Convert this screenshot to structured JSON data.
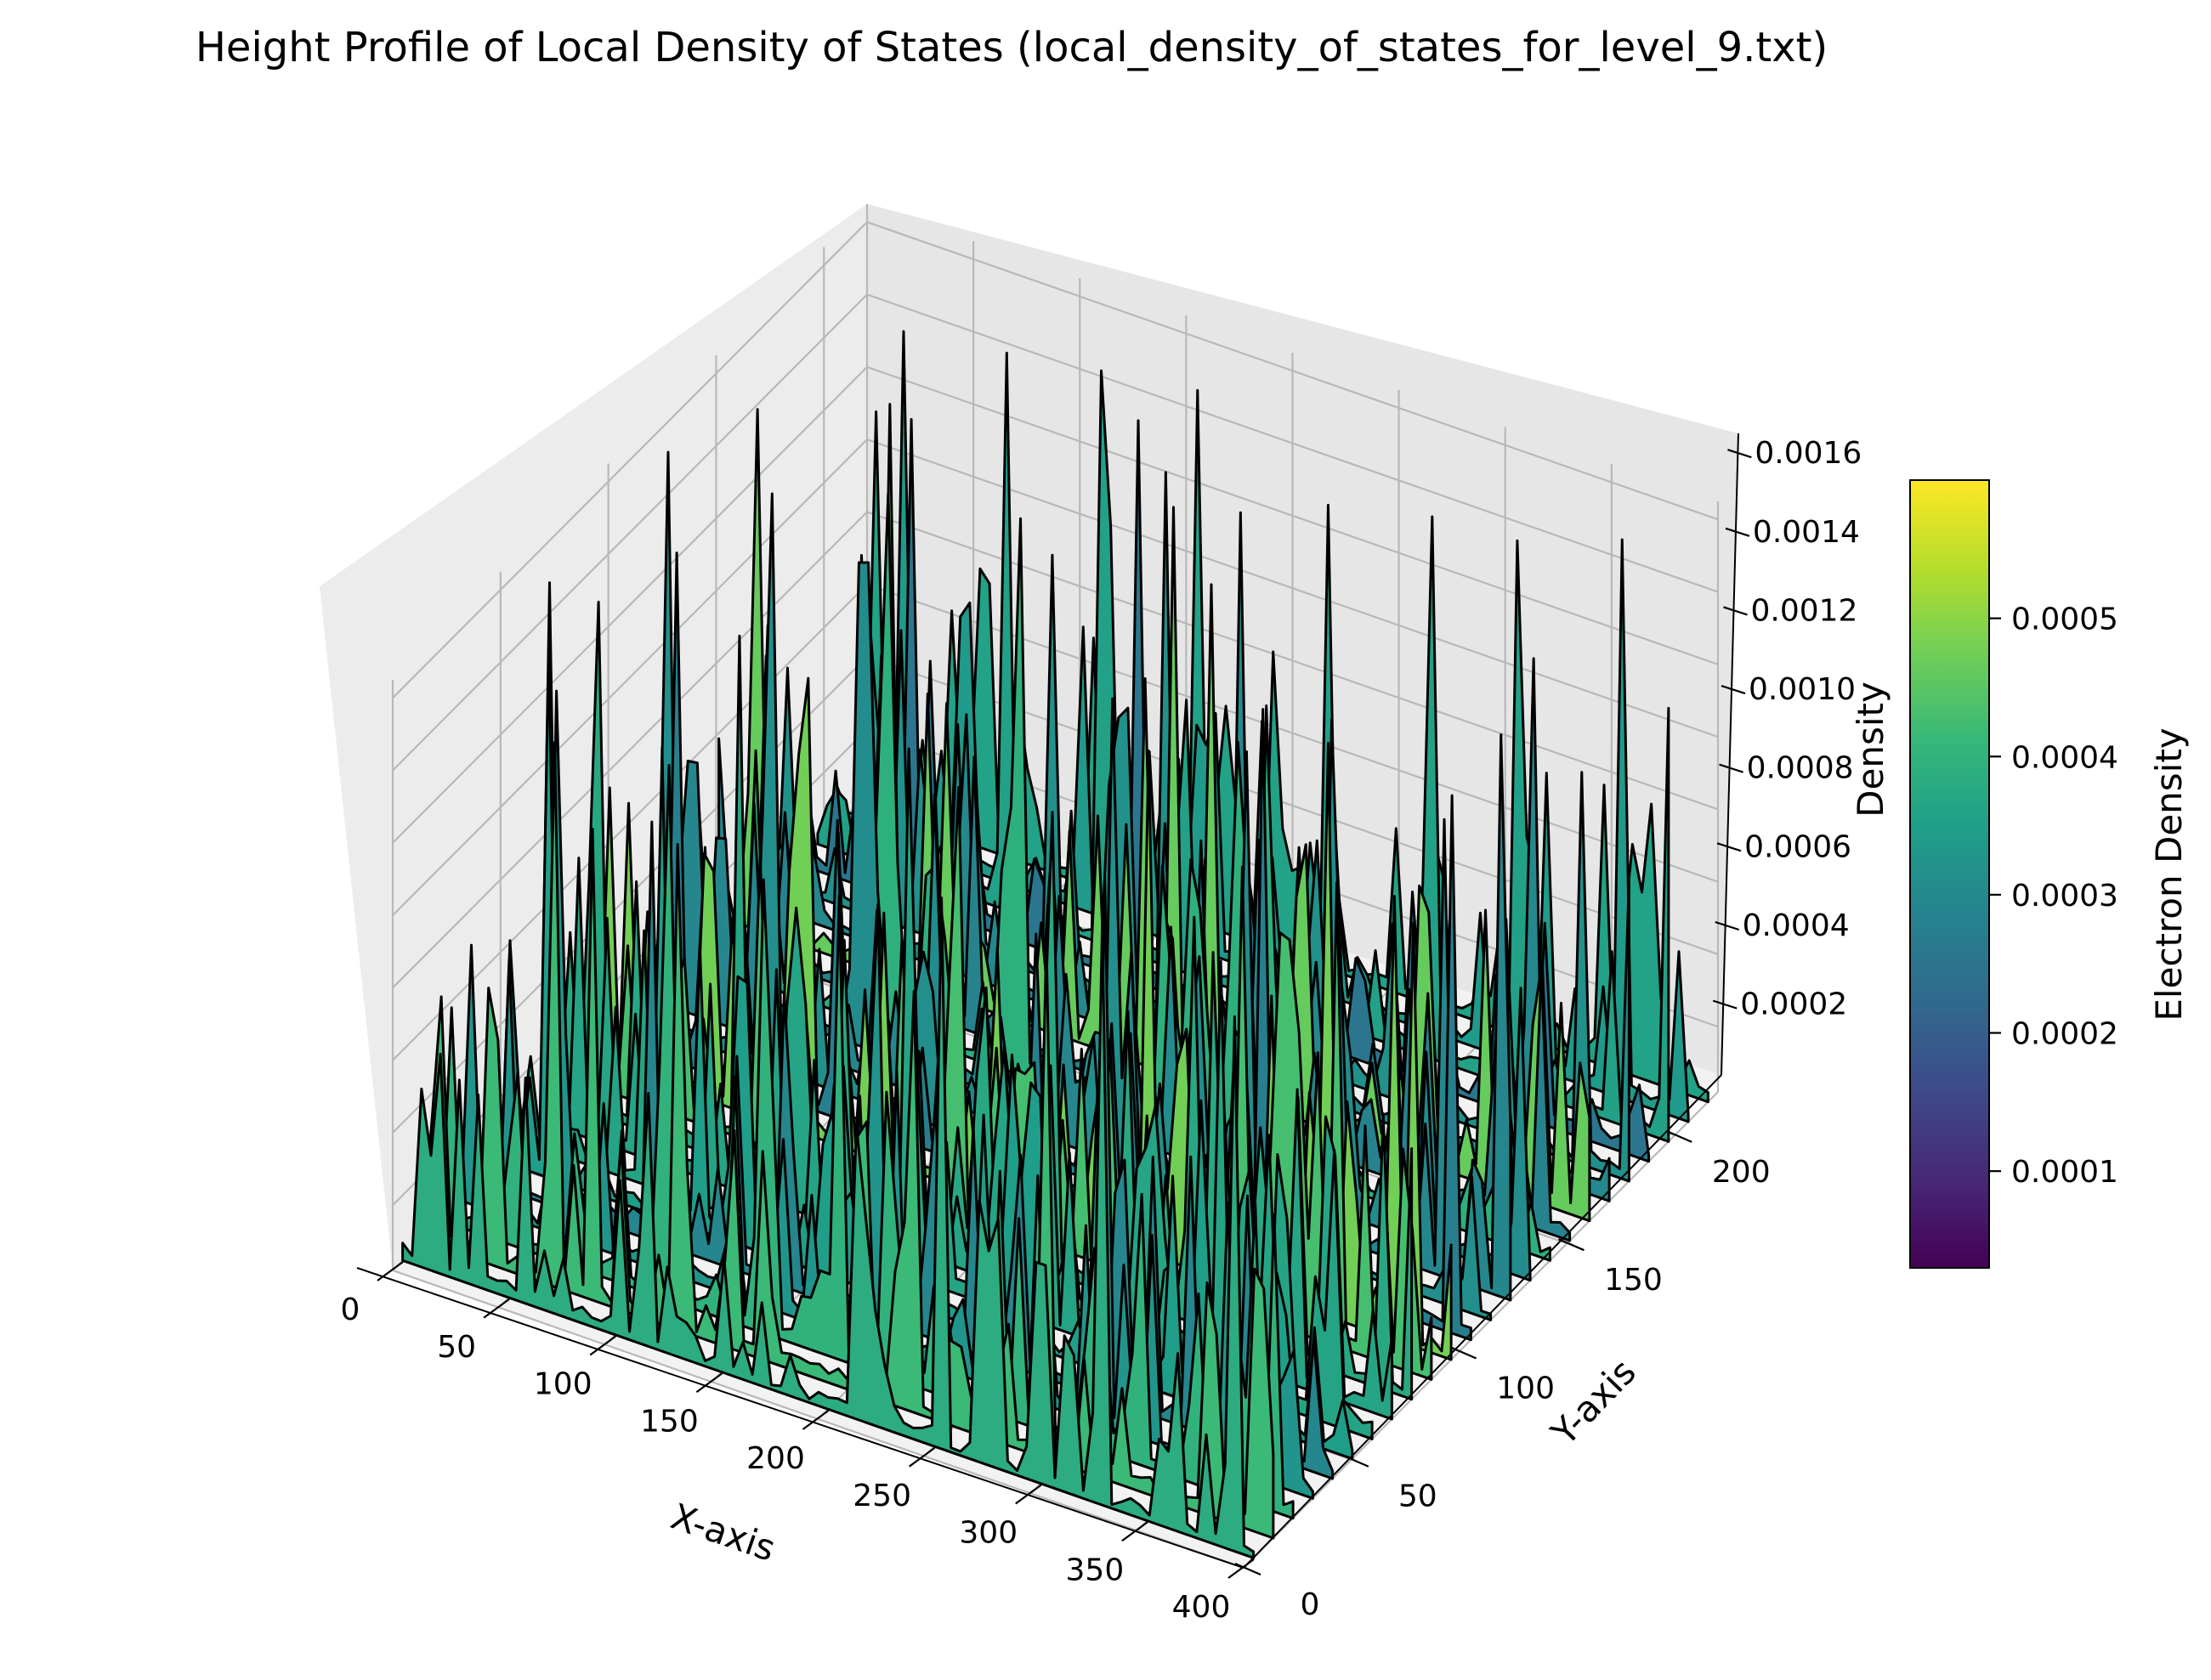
{
  "chart_data": {
    "type": "surface3d",
    "title": "Height Profile of Local Density of States (local_density_of_states_for_level_9.txt)",
    "xlabel": "X-axis",
    "ylabel": "Y-axis",
    "zlabel": "Density",
    "colorbar_label": "Electron Density",
    "colormap": "viridis",
    "xlim": [
      0,
      400
    ],
    "ylim": [
      0,
      220
    ],
    "zlim": [
      2e-05,
      0.00165
    ],
    "x_ticks": [
      "0",
      "50",
      "100",
      "150",
      "200",
      "250",
      "300",
      "350",
      "400"
    ],
    "y_ticks": [
      "0",
      "50",
      "100",
      "150",
      "200"
    ],
    "z_ticks": [
      "0.0002",
      "0.0004",
      "0.0006",
      "0.0008",
      "0.0010",
      "0.0012",
      "0.0014",
      "0.0016"
    ],
    "colorbar_ticks": [
      "0.0001",
      "0.0002",
      "0.0003",
      "0.0004",
      "0.0005"
    ],
    "colorbar_range": [
      3e-05,
      0.0006
    ],
    "colorbar_colors": [
      "#440154",
      "#482878",
      "#3e4989",
      "#31688e",
      "#26828e",
      "#1f9e89",
      "#35b779",
      "#6ece58",
      "#b5de2b",
      "#fde725"
    ],
    "grid": true,
    "surface_summary": {
      "baseline_density": 5e-05,
      "typical_peak_density": 0.0008,
      "max_density": 0.00163
    }
  }
}
